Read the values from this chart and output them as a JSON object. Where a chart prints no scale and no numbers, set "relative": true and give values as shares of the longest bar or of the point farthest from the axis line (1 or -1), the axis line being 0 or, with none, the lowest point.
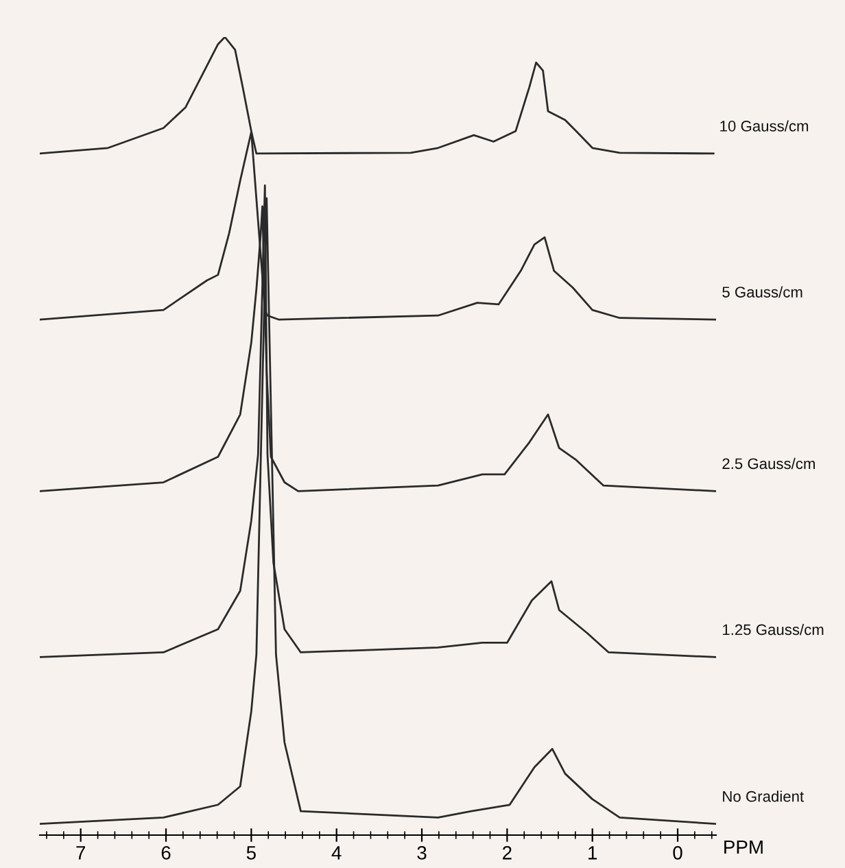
{
  "chart_data": {
    "type": "line",
    "relative": true,
    "xlabel": "PPM",
    "xlim": [
      7.48,
      -0.45
    ],
    "xticks": [
      {
        "value": 7.4,
        "label": null
      },
      {
        "value": 7.2,
        "label": null
      },
      7,
      {
        "value": 6.8,
        "label": null
      },
      {
        "value": 6.6,
        "label": null
      },
      {
        "value": 6.4,
        "label": null
      },
      {
        "value": 6.2,
        "label": null
      },
      6,
      {
        "value": 5.8,
        "label": null
      },
      {
        "value": 5.6,
        "label": null
      },
      {
        "value": 5.4,
        "label": null
      },
      {
        "value": 5.2,
        "label": null
      },
      5,
      {
        "value": 4.8,
        "label": null
      },
      {
        "value": 4.6,
        "label": null
      },
      {
        "value": 4.4,
        "label": null
      },
      {
        "value": 4.2,
        "label": null
      },
      4,
      {
        "value": 3.8,
        "label": null
      },
      {
        "value": 3.6,
        "label": null
      },
      {
        "value": 3.4,
        "label": null
      },
      {
        "value": 3.2,
        "label": null
      },
      3,
      {
        "value": 2.8,
        "label": null
      },
      {
        "value": 2.6,
        "label": null
      },
      {
        "value": 2.4,
        "label": null
      },
      {
        "value": 2.2,
        "label": null
      },
      2,
      {
        "value": 1.8,
        "label": null
      },
      {
        "value": 1.6,
        "label": null
      },
      {
        "value": 1.4,
        "label": null
      },
      {
        "value": 1.2,
        "label": null
      },
      1,
      {
        "value": 0.8,
        "label": null
      },
      {
        "value": 0.6,
        "label": null
      },
      {
        "value": 0.4,
        "label": null
      },
      {
        "value": 0.2,
        "label": null
      },
      0,
      {
        "value": -0.2,
        "label": null
      },
      {
        "value": -0.4,
        "label": null
      }
    ],
    "series": [
      {
        "name": "10 Gauss/cm",
        "color": "#2a2a2a",
        "x": [
          7.48,
          6.68,
          6.03,
          5.77,
          5.52,
          5.39,
          5.31,
          5.19,
          5.1,
          5.0,
          4.94,
          3.13,
          2.81,
          2.39,
          2.16,
          1.9,
          1.74,
          1.66,
          1.58,
          1.52,
          1.32,
          1.19,
          1.0,
          0.68,
          -0.42
        ],
        "values": [
          0.854,
          0.861,
          0.886,
          0.912,
          0.964,
          0.991,
          1.0,
          0.984,
          0.937,
          0.882,
          0.854,
          0.855,
          0.861,
          0.877,
          0.869,
          0.882,
          0.937,
          0.968,
          0.958,
          0.907,
          0.896,
          0.882,
          0.861,
          0.855,
          0.854
        ]
      },
      {
        "name": "5 Gauss/cm",
        "color": "#2a2a2a",
        "x": [
          7.48,
          6.03,
          5.52,
          5.39,
          5.26,
          5.13,
          5.0,
          4.84,
          4.81,
          4.68,
          2.81,
          2.35,
          2.1,
          1.84,
          1.68,
          1.56,
          1.45,
          1.23,
          1.0,
          0.68,
          -0.45
        ],
        "values": [
          0.646,
          0.658,
          0.695,
          0.702,
          0.754,
          0.82,
          0.881,
          0.658,
          0.651,
          0.646,
          0.651,
          0.667,
          0.665,
          0.707,
          0.74,
          0.749,
          0.707,
          0.686,
          0.658,
          0.648,
          0.646
        ]
      },
      {
        "name": "2.5 Gauss/cm",
        "color": "#2a2a2a",
        "x": [
          7.48,
          6.03,
          5.39,
          5.13,
          5.0,
          4.94,
          4.89,
          4.87,
          4.82,
          4.77,
          4.61,
          4.45,
          2.81,
          2.29,
          2.03,
          1.74,
          1.52,
          1.39,
          1.19,
          0.87,
          -0.45
        ],
        "values": [
          0.431,
          0.442,
          0.474,
          0.527,
          0.617,
          0.684,
          0.752,
          0.788,
          0.581,
          0.474,
          0.442,
          0.431,
          0.438,
          0.452,
          0.452,
          0.492,
          0.527,
          0.485,
          0.47,
          0.438,
          0.431
        ]
      },
      {
        "name": "1.25 Gauss/cm",
        "color": "#2a2a2a",
        "x": [
          7.48,
          6.03,
          5.39,
          5.13,
          5.0,
          4.92,
          4.84,
          4.81,
          4.74,
          4.61,
          4.42,
          2.81,
          2.29,
          2.0,
          1.71,
          1.48,
          1.39,
          1.06,
          0.81,
          -0.45
        ],
        "values": [
          0.223,
          0.229,
          0.258,
          0.306,
          0.394,
          0.477,
          0.814,
          0.477,
          0.341,
          0.258,
          0.229,
          0.235,
          0.241,
          0.241,
          0.294,
          0.318,
          0.282,
          0.253,
          0.229,
          0.223
        ]
      },
      {
        "name": "No Gradient",
        "color": "#2a2a2a",
        "x": [
          7.48,
          6.03,
          5.39,
          5.13,
          5.0,
          4.94,
          4.82,
          4.71,
          4.61,
          4.42,
          2.81,
          2.42,
          1.97,
          1.68,
          1.47,
          1.32,
          1.0,
          0.68,
          -0.45
        ],
        "values": [
          0.014,
          0.022,
          0.038,
          0.061,
          0.155,
          0.226,
          0.798,
          0.226,
          0.116,
          0.03,
          0.022,
          0.03,
          0.038,
          0.085,
          0.108,
          0.077,
          0.045,
          0.022,
          0.014
        ]
      }
    ]
  }
}
